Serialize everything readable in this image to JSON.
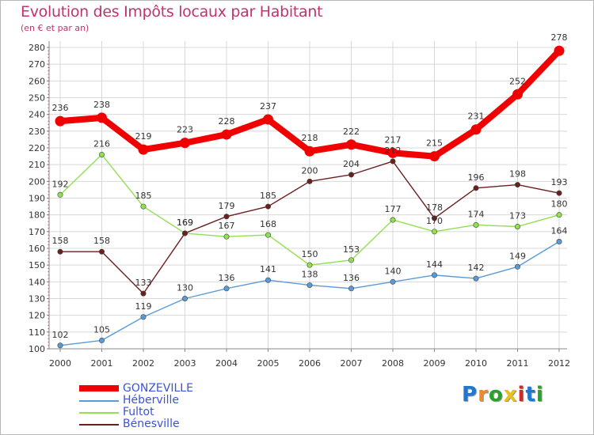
{
  "title": "Evolution des Impôts locaux par Habitant",
  "subtitle": "(en € et par an)",
  "logo": "Proxiti",
  "logo_colors": [
    "#1f77d4",
    "#f08a24",
    "#2ca02c",
    "#e8c020",
    "#d62728",
    "#1f77d4",
    "#2ca02c"
  ],
  "chart_data": {
    "type": "line",
    "title": "Evolution des Impôts locaux par Habitant",
    "subtitle": "(en € et par an)",
    "xlabel": "",
    "ylabel": "",
    "x": [
      "2000",
      "2001",
      "2002",
      "2003",
      "2004",
      "2005",
      "2006",
      "2007",
      "2008",
      "2009",
      "2010",
      "2011",
      "2012"
    ],
    "ylim": [
      100,
      280
    ],
    "yticks": [
      100,
      110,
      120,
      130,
      140,
      150,
      160,
      170,
      180,
      190,
      200,
      210,
      220,
      230,
      240,
      250,
      260,
      270,
      280
    ],
    "grid": true,
    "legend_position": "bottom-left",
    "series": [
      {
        "name": "GONZEVILLE",
        "color": "#f00000",
        "values": [
          236,
          238,
          219,
          223,
          228,
          237,
          218,
          222,
          217,
          215,
          231,
          252,
          278
        ]
      },
      {
        "name": "Héberville",
        "color": "#5b9bd5",
        "values": [
          102,
          105,
          119,
          130,
          136,
          141,
          138,
          136,
          140,
          144,
          142,
          149,
          164
        ]
      },
      {
        "name": "Fultot",
        "color": "#90e050",
        "values": [
          192,
          216,
          185,
          169,
          167,
          168,
          150,
          153,
          177,
          170,
          174,
          173,
          180
        ]
      },
      {
        "name": "Bénesville",
        "color": "#6b1f1f",
        "values": [
          158,
          158,
          133,
          169,
          179,
          185,
          200,
          204,
          212,
          178,
          196,
          198,
          193
        ]
      }
    ]
  }
}
